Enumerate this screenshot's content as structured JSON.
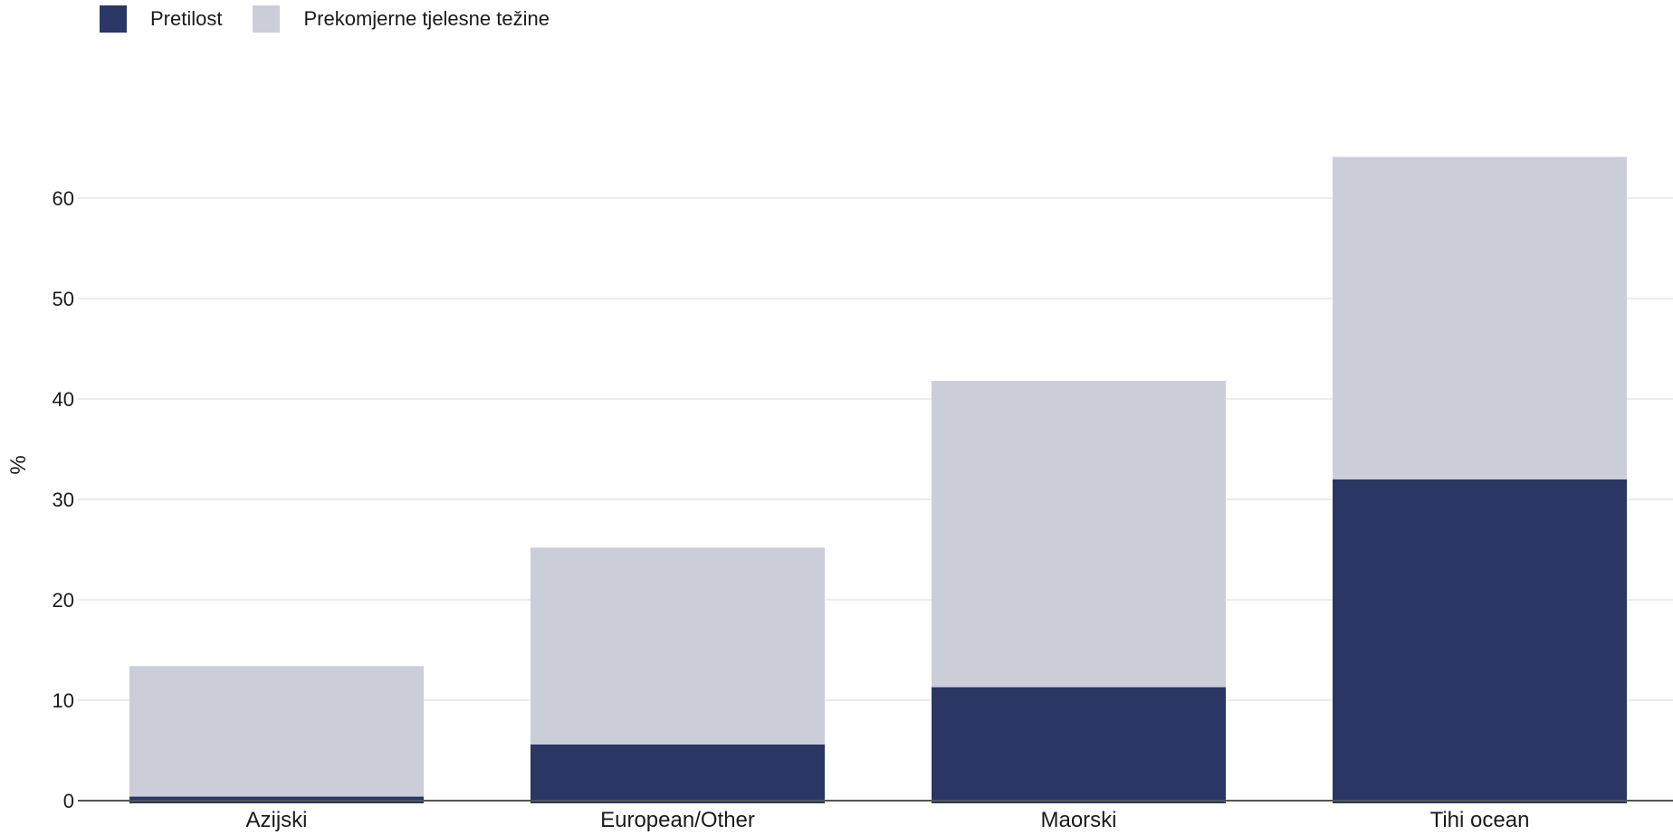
{
  "chart_data": {
    "type": "bar",
    "stacked": true,
    "categories": [
      "Azijski",
      "European/Other",
      "Maorski",
      "Tihi ocean"
    ],
    "series": [
      {
        "name": "Pretilost",
        "color": "#2a3663",
        "values": [
          0.4,
          5.6,
          11.3,
          32.0
        ]
      },
      {
        "name": "Prekomjerne tjelesne težine",
        "color": "#cbcdd9",
        "values": [
          13.0,
          19.6,
          30.5,
          32.1
        ]
      }
    ],
    "xlabel": "",
    "ylabel": "%",
    "ylim": [
      0,
      68
    ],
    "yticks": [
      0,
      10,
      20,
      30,
      40,
      50,
      60
    ],
    "grid": true,
    "legend_position": "top-left"
  }
}
